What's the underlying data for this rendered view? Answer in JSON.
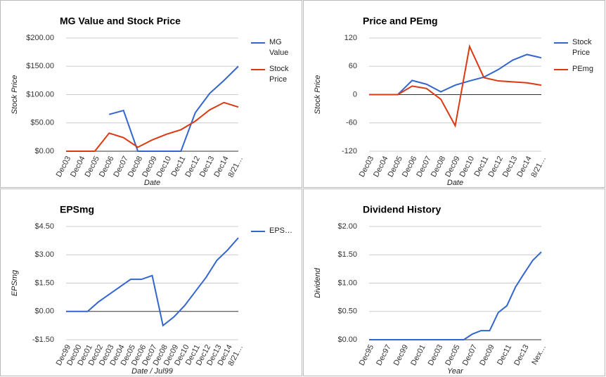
{
  "chart_data": [
    {
      "type": "line",
      "title": "MG Value and Stock Price",
      "x_label": "Date",
      "y_label": "Stock Price",
      "categories": [
        "Dec03",
        "Dec04",
        "Dec05",
        "Dec06",
        "Dec07",
        "Dec08",
        "Dec09",
        "Dec10",
        "Dec11",
        "Dec12",
        "Dec13",
        "Dec14",
        "8/21…"
      ],
      "series": [
        {
          "name": "MG Value",
          "color": "#3366cc",
          "values": [
            null,
            null,
            null,
            65,
            72,
            0,
            0,
            0,
            0,
            68,
            102,
            125,
            150
          ]
        },
        {
          "name": "Stock Price",
          "color": "#dc3912",
          "values": [
            0,
            0,
            0,
            32,
            24,
            7,
            20,
            30,
            38,
            53,
            73,
            86,
            78
          ]
        }
      ],
      "ylim": [
        0,
        200
      ],
      "yticks": [
        {
          "value": 0,
          "label": "$0.00"
        },
        {
          "value": 50,
          "label": "$50.00"
        },
        {
          "value": 100,
          "label": "$100.00"
        },
        {
          "value": 150,
          "label": "$150.00"
        },
        {
          "value": 200,
          "label": "$200.00"
        }
      ],
      "grid": true,
      "legend": "right"
    },
    {
      "type": "line",
      "title": "Price and PEmg",
      "x_label": "Date",
      "y_label": "Stock Price",
      "categories": [
        "Dec03",
        "Dec04",
        "Dec05",
        "Dec06",
        "Dec07",
        "Dec08",
        "Dec09",
        "Dec10",
        "Dec11",
        "Dec12",
        "Dec13",
        "Dec14",
        "8/21…"
      ],
      "series": [
        {
          "name": "Stock Price",
          "color": "#3366cc",
          "values": [
            0,
            0,
            0,
            30,
            22,
            6,
            20,
            29,
            37,
            53,
            73,
            85,
            78
          ]
        },
        {
          "name": "PEmg",
          "color": "#dc3912",
          "values": [
            0,
            0,
            0,
            18,
            13,
            -10,
            -66,
            102,
            36,
            29,
            27,
            25,
            20
          ]
        }
      ],
      "ylim": [
        -120,
        120
      ],
      "yticks": [
        -120,
        -60,
        0,
        60,
        120
      ],
      "grid": true,
      "legend": "right"
    },
    {
      "type": "line",
      "title": "EPSmg",
      "x_label": "Date / Jul99",
      "y_label": "EPSmg",
      "categories": [
        "Dec99",
        "Dec00",
        "Dec01",
        "Dec02",
        "Dec03",
        "Dec04",
        "Dec05",
        "Dec06",
        "Dec07",
        "Dec08",
        "Dec09",
        "Dec10",
        "Dec11",
        "Dec12",
        "Dec13",
        "Dec14",
        "8/21…"
      ],
      "series": [
        {
          "name": "EPS…",
          "color": "#3366cc",
          "values": [
            0,
            0,
            0,
            0.5,
            0.9,
            1.3,
            1.7,
            1.7,
            1.9,
            -0.75,
            -0.3,
            0.3,
            1.05,
            1.8,
            2.7,
            3.25,
            3.9
          ]
        }
      ],
      "ylim": [
        -1.5,
        4.5
      ],
      "yticks": [
        {
          "value": -1.5,
          "label": "-$1.50"
        },
        {
          "value": 0,
          "label": "$0.00"
        },
        {
          "value": 1.5,
          "label": "$1.50"
        },
        {
          "value": 3,
          "label": "$3.00"
        },
        {
          "value": 4.5,
          "label": "$4.50"
        }
      ],
      "grid": true,
      "legend": "right"
    },
    {
      "type": "line",
      "title": "Dividend History",
      "x_label": "Year",
      "y_label": "Dividend",
      "categories": [
        "Dec95",
        null,
        "Dec97",
        null,
        "Dec99",
        null,
        "Dec01",
        null,
        "Dec03",
        null,
        "Dec05",
        null,
        "Dec07",
        null,
        "Dec09",
        null,
        "Dec11",
        null,
        "Dec13",
        null,
        "Nex…"
      ],
      "series": [
        {
          "color": "#3366cc",
          "values": [
            0,
            0,
            0,
            0,
            0,
            0,
            0,
            0,
            0,
            0,
            0,
            0,
            0.1,
            0.16,
            0.16,
            0.48,
            0.6,
            0.93,
            1.17,
            1.4,
            1.55
          ]
        }
      ],
      "ylim": [
        0,
        2
      ],
      "yticks": [
        {
          "value": 0,
          "label": "$0.00"
        },
        {
          "value": 0.5,
          "label": "$0.50"
        },
        {
          "value": 1,
          "label": "$1.00"
        },
        {
          "value": 1.5,
          "label": "$1.50"
        },
        {
          "value": 2,
          "label": "$2.00"
        }
      ],
      "grid": true
    }
  ]
}
